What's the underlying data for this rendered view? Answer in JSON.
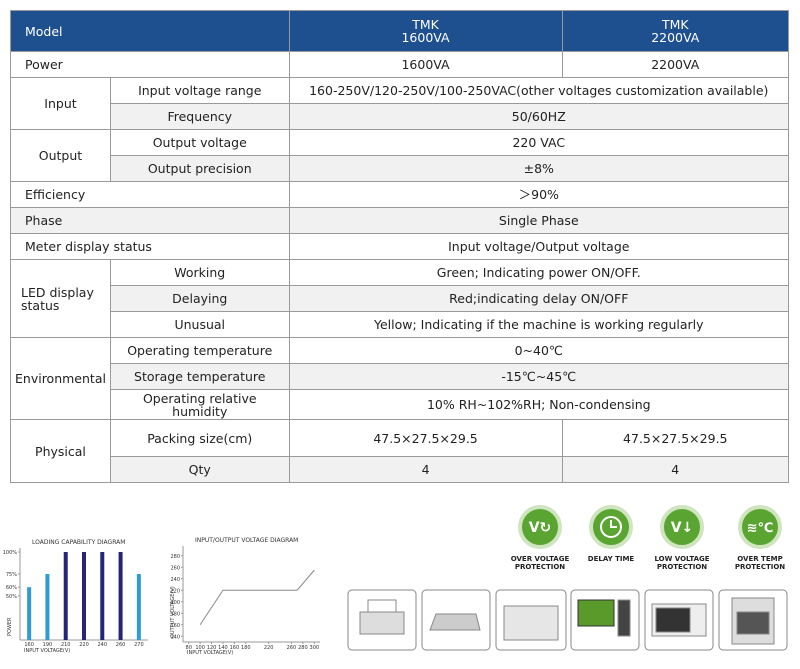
{
  "table": {
    "header": {
      "model": "Model",
      "models": [
        "TMK\n1600VA",
        "TMK\n2200VA"
      ]
    },
    "power": {
      "label": "Power",
      "values": [
        "1600VA",
        "2200VA"
      ]
    },
    "input": {
      "label": "Input",
      "items": [
        {
          "label": "Input voltage range",
          "value": "160-250V/120-250V/100-250VAC(other voltages customization available)"
        },
        {
          "label": "Frequency",
          "value": "50/60HZ"
        }
      ]
    },
    "output": {
      "label": "Output",
      "items": [
        {
          "label": "Output voltage",
          "value": "220 VAC"
        },
        {
          "label": "Output precision",
          "value": "±8%"
        }
      ]
    },
    "efficiency": {
      "label": "Efficiency",
      "value": "＞90%"
    },
    "phase": {
      "label": "Phase",
      "value": "Single Phase"
    },
    "meter": {
      "label": "Meter display status",
      "value": "Input voltage/Output voltage"
    },
    "led": {
      "label": "LED display\nstatus",
      "items": [
        {
          "label": "Working",
          "value": "Green; Indicating power ON/OFF."
        },
        {
          "label": "Delaying",
          "value": "Red;indicating delay ON/OFF"
        },
        {
          "label": "Unusual",
          "value": "Yellow; Indicating if the machine is working regularly"
        }
      ]
    },
    "environmental": {
      "label": "Environmental",
      "items": [
        {
          "label": "Operating temperature",
          "value": "0~40℃"
        },
        {
          "label": "Storage temperature",
          "value": "-15℃~45℃"
        },
        {
          "label": "Operating relative\nhumidity",
          "value": "10% RH~102%RH; Non-condensing"
        }
      ]
    },
    "physical": {
      "label": "Physical",
      "items": [
        {
          "label": "Packing size(cm)",
          "values": [
            "47.5×27.5×29.5",
            "47.5×27.5×29.5"
          ]
        },
        {
          "label": "Qty",
          "values": [
            "4",
            "4"
          ]
        }
      ]
    }
  },
  "chart_data": [
    {
      "type": "bar",
      "title": "LOADING CAPABILITY DIAGRAM",
      "xlabel": "INPUT VOLTAGE(V)",
      "ylabel": "POWER",
      "categories": [
        "160",
        "190",
        "210",
        "220",
        "240",
        "260",
        "270"
      ],
      "values": [
        60,
        75,
        100,
        100,
        100,
        100,
        75
      ],
      "colors": [
        "#2e9bd6",
        "#2e9bd6",
        "#26237a",
        "#26237a",
        "#26237a",
        "#26237a",
        "#2e9bd6"
      ],
      "ylim": [
        0,
        100
      ],
      "yticks": [
        {
          "value": 50,
          "label": "50%"
        },
        {
          "value": 60,
          "label": "60%"
        },
        {
          "value": 75,
          "label": "75%"
        },
        {
          "value": 100,
          "label": "100%"
        }
      ]
    },
    {
      "type": "line",
      "title": "INPUT/OUTPUT VOLTAGE DIAGRAM",
      "xlabel": "INPUT VOLTAGE(V)",
      "ylabel": "OUTPUT VOLTAGE(V)",
      "x": [
        100,
        140,
        270,
        300
      ],
      "values": [
        160,
        220,
        220,
        255
      ],
      "color": "#888888",
      "xlim": [
        70,
        310
      ],
      "xticks": [
        80,
        100,
        120,
        140,
        160,
        180,
        220,
        260,
        280,
        300
      ],
      "ylim": [
        130,
        290
      ],
      "yticks": [
        140,
        160,
        180,
        200,
        220,
        240,
        260,
        280
      ]
    }
  ],
  "features": [
    "OVER VOLTAGE\nPROTECTION",
    "DELAY TIME",
    "LOW VOLTAGE\nPROTECTION",
    "OVER TEMP\nPROTECTION"
  ]
}
